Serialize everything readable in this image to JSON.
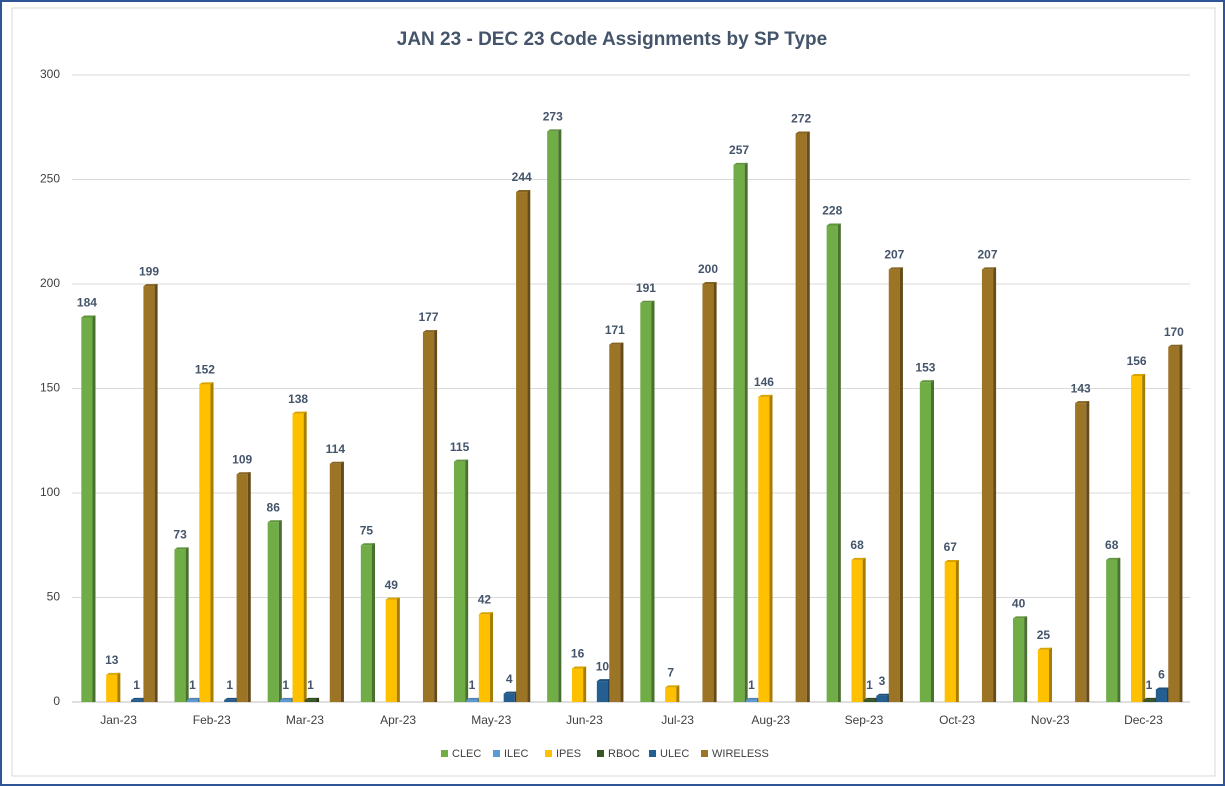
{
  "chart_data": {
    "type": "bar",
    "title": "JAN 23 - DEC 23 Code Assignments by SP Type",
    "categories": [
      "Jan-23",
      "Feb-23",
      "Mar-23",
      "Apr-23",
      "May-23",
      "Jun-23",
      "Jul-23",
      "Aug-23",
      "Sep-23",
      "Oct-23",
      "Nov-23",
      "Dec-23"
    ],
    "series": [
      {
        "name": "CLEC",
        "color": "#70ad47",
        "values": [
          184,
          73,
          86,
          75,
          115,
          273,
          191,
          257,
          228,
          153,
          40,
          68
        ]
      },
      {
        "name": "ILEC",
        "color": "#5b9bd5",
        "values": [
          null,
          1,
          1,
          null,
          1,
          null,
          null,
          1,
          null,
          null,
          null,
          null
        ]
      },
      {
        "name": "IPES",
        "color": "#ffc000",
        "values": [
          13,
          152,
          138,
          49,
          42,
          16,
          7,
          146,
          68,
          67,
          25,
          156
        ]
      },
      {
        "name": "RBOC",
        "color": "#375623",
        "values": [
          null,
          null,
          1,
          null,
          null,
          null,
          null,
          null,
          1,
          null,
          null,
          1
        ]
      },
      {
        "name": "ULEC",
        "color": "#255e91",
        "values": [
          1,
          1,
          null,
          null,
          4,
          10,
          null,
          null,
          3,
          null,
          null,
          6
        ]
      },
      {
        "name": "WIRELESS",
        "color": "#9c7426",
        "values": [
          199,
          109,
          114,
          177,
          244,
          171,
          200,
          272,
          207,
          207,
          143,
          170
        ]
      }
    ],
    "ylim": [
      0,
      300
    ],
    "yticks": [
      0,
      50,
      100,
      150,
      200,
      250,
      300
    ],
    "grid": true,
    "legend": "bottom"
  }
}
